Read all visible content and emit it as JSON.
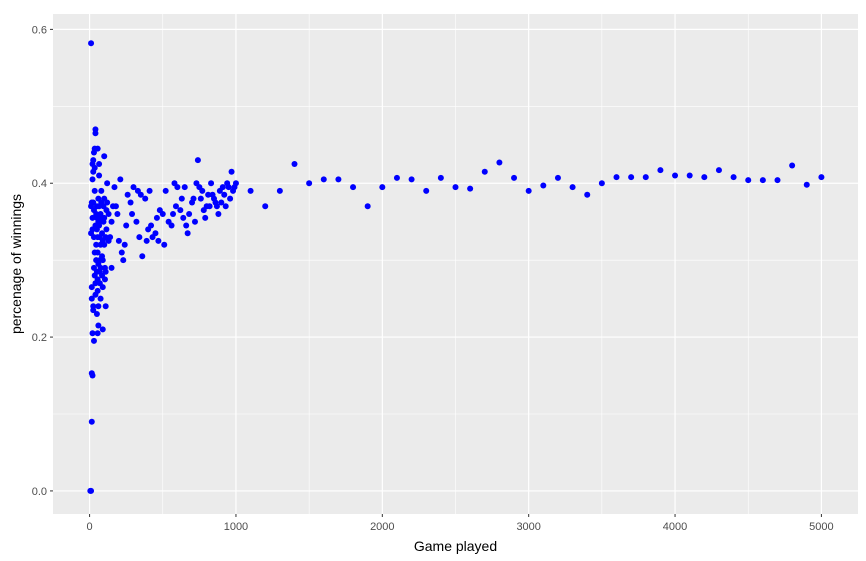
{
  "chart_data": {
    "type": "scatter",
    "xlabel": "Game played",
    "ylabel": "percenage of winnings",
    "xlim": [
      -250,
      5250
    ],
    "ylim": [
      -0.03,
      0.62
    ],
    "x_ticks": [
      0,
      1000,
      2000,
      3000,
      4000,
      5000
    ],
    "x_tick_labels": [
      "0",
      "1000",
      "2000",
      "3000",
      "4000",
      "5000"
    ],
    "y_ticks": [
      0.0,
      0.2,
      0.4,
      0.6
    ],
    "y_tick_labels": [
      "0.0",
      "0.2",
      "0.4",
      "0.6"
    ],
    "grid": true,
    "colors": {
      "panel": "#ebebeb",
      "grid": "#ffffff",
      "point": "#0000ff",
      "tick_text": "#4d4d4d"
    },
    "points": [
      [
        5,
        0.0
      ],
      [
        10,
        0.0
      ],
      [
        15,
        0.09
      ],
      [
        15,
        0.153
      ],
      [
        20,
        0.15
      ],
      [
        10,
        0.582
      ],
      [
        20,
        0.205
      ],
      [
        25,
        0.24
      ],
      [
        15,
        0.25
      ],
      [
        15,
        0.265
      ],
      [
        25,
        0.235
      ],
      [
        30,
        0.195
      ],
      [
        10,
        0.335
      ],
      [
        10,
        0.37
      ],
      [
        15,
        0.375
      ],
      [
        20,
        0.34
      ],
      [
        20,
        0.355
      ],
      [
        25,
        0.375
      ],
      [
        20,
        0.405
      ],
      [
        25,
        0.415
      ],
      [
        20,
        0.425
      ],
      [
        25,
        0.43
      ],
      [
        30,
        0.44
      ],
      [
        35,
        0.445
      ],
      [
        40,
        0.465
      ],
      [
        40,
        0.47
      ],
      [
        35,
        0.42
      ],
      [
        35,
        0.39
      ],
      [
        30,
        0.365
      ],
      [
        30,
        0.33
      ],
      [
        35,
        0.31
      ],
      [
        30,
        0.29
      ],
      [
        35,
        0.28
      ],
      [
        40,
        0.27
      ],
      [
        40,
        0.255
      ],
      [
        45,
        0.3
      ],
      [
        45,
        0.32
      ],
      [
        45,
        0.36
      ],
      [
        40,
        0.345
      ],
      [
        50,
        0.37
      ],
      [
        50,
        0.355
      ],
      [
        50,
        0.34
      ],
      [
        55,
        0.33
      ],
      [
        55,
        0.31
      ],
      [
        50,
        0.285
      ],
      [
        55,
        0.275
      ],
      [
        55,
        0.26
      ],
      [
        50,
        0.23
      ],
      [
        60,
        0.215
      ],
      [
        55,
        0.205
      ],
      [
        60,
        0.24
      ],
      [
        60,
        0.295
      ],
      [
        60,
        0.35
      ],
      [
        60,
        0.38
      ],
      [
        65,
        0.41
      ],
      [
        65,
        0.425
      ],
      [
        55,
        0.445
      ],
      [
        65,
        0.37
      ],
      [
        65,
        0.345
      ],
      [
        70,
        0.33
      ],
      [
        70,
        0.3
      ],
      [
        70,
        0.285
      ],
      [
        70,
        0.27
      ],
      [
        75,
        0.25
      ],
      [
        75,
        0.29
      ],
      [
        75,
        0.32
      ],
      [
        75,
        0.36
      ],
      [
        80,
        0.39
      ],
      [
        80,
        0.375
      ],
      [
        80,
        0.355
      ],
      [
        85,
        0.335
      ],
      [
        85,
        0.305
      ],
      [
        85,
        0.28
      ],
      [
        90,
        0.21
      ],
      [
        90,
        0.265
      ],
      [
        90,
        0.3
      ],
      [
        90,
        0.325
      ],
      [
        95,
        0.35
      ],
      [
        95,
        0.37
      ],
      [
        100,
        0.435
      ],
      [
        100,
        0.38
      ],
      [
        100,
        0.355
      ],
      [
        100,
        0.32
      ],
      [
        105,
        0.29
      ],
      [
        105,
        0.275
      ],
      [
        110,
        0.24
      ],
      [
        110,
        0.285
      ],
      [
        110,
        0.33
      ],
      [
        115,
        0.34
      ],
      [
        115,
        0.365
      ],
      [
        120,
        0.375
      ],
      [
        120,
        0.4
      ],
      [
        130,
        0.36
      ],
      [
        130,
        0.325
      ],
      [
        140,
        0.33
      ],
      [
        150,
        0.29
      ],
      [
        150,
        0.35
      ],
      [
        160,
        0.37
      ],
      [
        170,
        0.395
      ],
      [
        180,
        0.37
      ],
      [
        190,
        0.36
      ],
      [
        200,
        0.325
      ],
      [
        210,
        0.405
      ],
      [
        220,
        0.31
      ],
      [
        230,
        0.3
      ],
      [
        240,
        0.32
      ],
      [
        250,
        0.345
      ],
      [
        260,
        0.385
      ],
      [
        280,
        0.375
      ],
      [
        290,
        0.36
      ],
      [
        300,
        0.395
      ],
      [
        320,
        0.35
      ],
      [
        330,
        0.39
      ],
      [
        340,
        0.33
      ],
      [
        350,
        0.385
      ],
      [
        360,
        0.305
      ],
      [
        380,
        0.38
      ],
      [
        390,
        0.325
      ],
      [
        400,
        0.34
      ],
      [
        410,
        0.39
      ],
      [
        420,
        0.345
      ],
      [
        430,
        0.33
      ],
      [
        450,
        0.335
      ],
      [
        460,
        0.355
      ],
      [
        470,
        0.325
      ],
      [
        480,
        0.365
      ],
      [
        500,
        0.36
      ],
      [
        510,
        0.32
      ],
      [
        520,
        0.39
      ],
      [
        540,
        0.35
      ],
      [
        560,
        0.345
      ],
      [
        570,
        0.36
      ],
      [
        580,
        0.4
      ],
      [
        590,
        0.37
      ],
      [
        600,
        0.395
      ],
      [
        620,
        0.365
      ],
      [
        630,
        0.38
      ],
      [
        640,
        0.355
      ],
      [
        650,
        0.395
      ],
      [
        660,
        0.345
      ],
      [
        670,
        0.335
      ],
      [
        680,
        0.36
      ],
      [
        700,
        0.375
      ],
      [
        710,
        0.38
      ],
      [
        720,
        0.35
      ],
      [
        730,
        0.4
      ],
      [
        740,
        0.43
      ],
      [
        750,
        0.395
      ],
      [
        760,
        0.38
      ],
      [
        770,
        0.39
      ],
      [
        780,
        0.365
      ],
      [
        790,
        0.355
      ],
      [
        800,
        0.37
      ],
      [
        810,
        0.385
      ],
      [
        820,
        0.37
      ],
      [
        830,
        0.4
      ],
      [
        840,
        0.385
      ],
      [
        850,
        0.38
      ],
      [
        860,
        0.375
      ],
      [
        870,
        0.37
      ],
      [
        880,
        0.36
      ],
      [
        890,
        0.39
      ],
      [
        900,
        0.375
      ],
      [
        910,
        0.395
      ],
      [
        920,
        0.385
      ],
      [
        930,
        0.37
      ],
      [
        940,
        0.4
      ],
      [
        950,
        0.395
      ],
      [
        960,
        0.38
      ],
      [
        970,
        0.415
      ],
      [
        980,
        0.39
      ],
      [
        990,
        0.395
      ],
      [
        1000,
        0.4
      ],
      [
        1100,
        0.39
      ],
      [
        1200,
        0.37
      ],
      [
        1300,
        0.39
      ],
      [
        1400,
        0.425
      ],
      [
        1500,
        0.4
      ],
      [
        1600,
        0.405
      ],
      [
        1700,
        0.405
      ],
      [
        1800,
        0.395
      ],
      [
        1900,
        0.37
      ],
      [
        2000,
        0.395
      ],
      [
        2100,
        0.407
      ],
      [
        2200,
        0.405
      ],
      [
        2300,
        0.39
      ],
      [
        2400,
        0.407
      ],
      [
        2500,
        0.395
      ],
      [
        2600,
        0.393
      ],
      [
        2700,
        0.415
      ],
      [
        2800,
        0.427
      ],
      [
        2900,
        0.407
      ],
      [
        3000,
        0.39
      ],
      [
        3100,
        0.397
      ],
      [
        3200,
        0.407
      ],
      [
        3300,
        0.395
      ],
      [
        3400,
        0.385
      ],
      [
        3500,
        0.4
      ],
      [
        3600,
        0.408
      ],
      [
        3700,
        0.408
      ],
      [
        3800,
        0.408
      ],
      [
        3900,
        0.417
      ],
      [
        4000,
        0.41
      ],
      [
        4100,
        0.41
      ],
      [
        4200,
        0.408
      ],
      [
        4300,
        0.417
      ],
      [
        4400,
        0.408
      ],
      [
        4500,
        0.404
      ],
      [
        4600,
        0.404
      ],
      [
        4700,
        0.404
      ],
      [
        4800,
        0.423
      ],
      [
        4900,
        0.398
      ],
      [
        5000,
        0.408
      ]
    ]
  }
}
